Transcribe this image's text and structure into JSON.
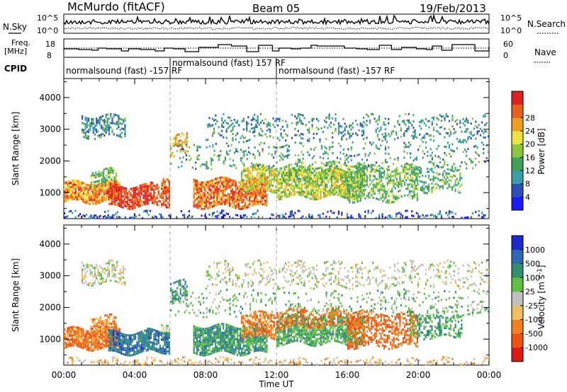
{
  "header": {
    "station": "McMurdo (fitACF)",
    "beam": "Beam 05",
    "date": "19/Feb/2013"
  },
  "strip_labels": {
    "nsky": "N.Sky",
    "nsearch": "N.Search",
    "freq_line1": "Freq.",
    "freq_line2": "[MHz]",
    "nave": "Nave",
    "cpid": "CPID"
  },
  "strip_ticks": {
    "noise_left": [
      "10^5",
      "10^0"
    ],
    "noise_right": [
      "10^5",
      "10^0"
    ],
    "freq_left": [
      "18",
      "8"
    ],
    "nave_right": [
      "60",
      "0"
    ]
  },
  "cpid_segments": [
    {
      "label": "normalsound (fast) -157 RF",
      "start_hour": 0
    },
    {
      "label": "normalsound (fast) 157 RF",
      "start_hour": 6
    },
    {
      "label": "normalsound (fast) -157 RF",
      "start_hour": 12
    }
  ],
  "chart_data": [
    {
      "type": "heatmap",
      "name": "power",
      "ylabel": "Slant Range [km]",
      "xlim": [
        0,
        24
      ],
      "ylim": [
        180,
        4600
      ],
      "x_ticks": [
        "00:00",
        "04:00",
        "08:00",
        "12:00",
        "16:00",
        "20:00",
        "00:00"
      ],
      "y_ticks": [
        1000,
        2000,
        3000,
        4000
      ],
      "colorbar": {
        "label": "Power [dB]",
        "ticks": [
          "4",
          "8",
          "12",
          "16",
          "20",
          "24",
          "28"
        ],
        "colors": [
          "#1a1aff",
          "#2d4fb8",
          "#3aa0a8",
          "#3fa057",
          "#8dc83a",
          "#f0e040",
          "#f0a020",
          "#e8601c",
          "#e02020"
        ]
      }
    },
    {
      "type": "heatmap",
      "name": "velocity",
      "ylabel": "Slant Range [km]",
      "xlabel": "Time UT",
      "xlim": [
        0,
        24
      ],
      "ylim": [
        180,
        4600
      ],
      "x_ticks": [
        "00:00",
        "04:00",
        "08:00",
        "12:00",
        "16:00",
        "20:00",
        "00:00"
      ],
      "y_ticks": [
        1000,
        2000,
        3000,
        4000
      ],
      "colorbar": {
        "label": "Velocity [m s",
        "label_superscript": "-1",
        "label_close": "]",
        "ticks": [
          "1000",
          "500",
          "100",
          "25",
          "-25",
          "-100",
          "-500",
          "-1000"
        ],
        "colors": [
          "#1a2ad0",
          "#2a6ab0",
          "#2f9070",
          "#60c040",
          "#c0c0c0",
          "#f0c060",
          "#f08020",
          "#f05010",
          "#e01818"
        ]
      }
    }
  ]
}
